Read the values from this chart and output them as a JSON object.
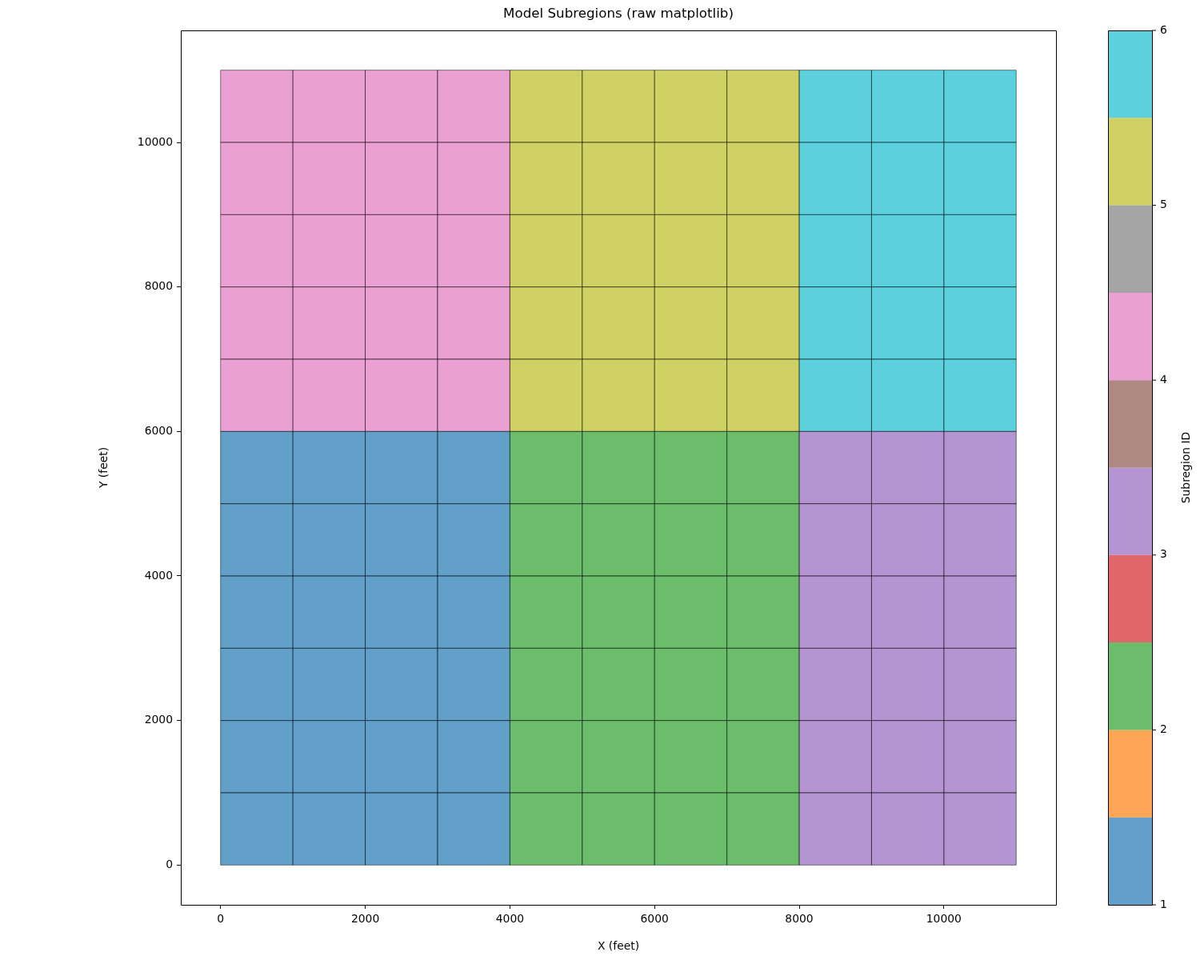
{
  "chart_data": {
    "type": "heatmap",
    "title": "Model Subregions (raw matplotlib)",
    "xlabel": "X (feet)",
    "ylabel": "Y (feet)",
    "clabel": "Subregion ID",
    "x": [
      500,
      1500,
      2500,
      3500,
      4500,
      5500,
      6500,
      7500,
      8500,
      9500,
      10500
    ],
    "y": [
      10500,
      9500,
      8500,
      7500,
      6500,
      5500,
      4500,
      3500,
      2500,
      1500,
      500
    ],
    "cells": [
      [
        4,
        4,
        4,
        4,
        5,
        5,
        5,
        5,
        6,
        6,
        6
      ],
      [
        4,
        4,
        4,
        4,
        5,
        5,
        5,
        5,
        6,
        6,
        6
      ],
      [
        4,
        4,
        4,
        4,
        5,
        5,
        5,
        5,
        6,
        6,
        6
      ],
      [
        4,
        4,
        4,
        4,
        5,
        5,
        5,
        5,
        6,
        6,
        6
      ],
      [
        4,
        4,
        4,
        4,
        5,
        5,
        5,
        5,
        6,
        6,
        6
      ],
      [
        1,
        1,
        1,
        1,
        2,
        2,
        2,
        2,
        3,
        3,
        3
      ],
      [
        1,
        1,
        1,
        1,
        2,
        2,
        2,
        2,
        3,
        3,
        3
      ],
      [
        1,
        1,
        1,
        1,
        2,
        2,
        2,
        2,
        3,
        3,
        3
      ],
      [
        1,
        1,
        1,
        1,
        2,
        2,
        2,
        2,
        3,
        3,
        3
      ],
      [
        1,
        1,
        1,
        1,
        2,
        2,
        2,
        2,
        3,
        3,
        3
      ],
      [
        1,
        1,
        1,
        1,
        2,
        2,
        2,
        2,
        3,
        3,
        3
      ]
    ],
    "xlim": [
      -550,
      11550
    ],
    "ylim": [
      -550,
      11550
    ],
    "xticks": [
      0,
      2000,
      4000,
      6000,
      8000,
      10000
    ],
    "yticks": [
      0,
      2000,
      4000,
      6000,
      8000,
      10000
    ],
    "clim": [
      1,
      6
    ],
    "cticks": [
      1,
      2,
      3,
      4,
      5,
      6
    ]
  }
}
